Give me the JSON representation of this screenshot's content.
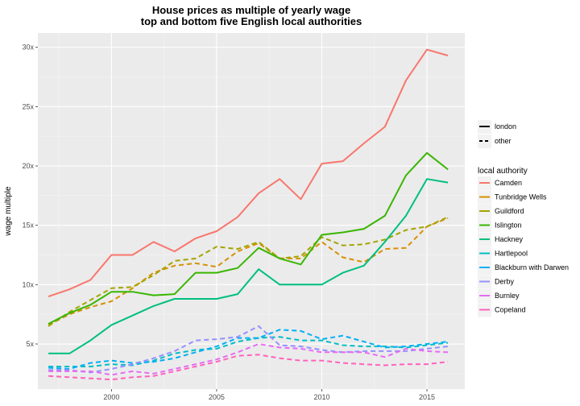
{
  "chart_data": {
    "type": "line",
    "title": "House prices as multiple of yearly wage",
    "subtitle": "top and bottom five English local authorities",
    "xlabel": "",
    "ylabel": "wage multiple",
    "xlim": [
      1996.5,
      2016.8
    ],
    "ylim": [
      1.2,
      31.2
    ],
    "x_ticks": [
      2000,
      2005,
      2010,
      2015
    ],
    "x_tick_labels": [
      "2000",
      "2005",
      "2010",
      "2015"
    ],
    "y_ticks": [
      5,
      10,
      15,
      20,
      25,
      30
    ],
    "y_tick_labels": [
      "5x",
      "10x",
      "15x",
      "20x",
      "25x",
      "30x"
    ],
    "grid": true,
    "legend_position": "right",
    "linetype_legend": {
      "title": "",
      "items": [
        {
          "label": "london",
          "dash": "solid"
        },
        {
          "label": "other",
          "dash": "dashed"
        }
      ]
    },
    "color_legend_title": "local authority",
    "x": [
      1997,
      1998,
      1999,
      2000,
      2001,
      2002,
      2003,
      2004,
      2005,
      2006,
      2007,
      2008,
      2009,
      2010,
      2011,
      2012,
      2013,
      2014,
      2015,
      2016
    ],
    "series": [
      {
        "name": "Camden",
        "color": "#F8766D",
        "dash": "solid",
        "values": [
          9.0,
          9.6,
          10.4,
          12.5,
          12.5,
          13.6,
          12.8,
          13.9,
          14.5,
          15.7,
          17.7,
          18.9,
          17.2,
          20.2,
          20.4,
          21.9,
          23.3,
          27.2,
          29.8,
          29.3
        ]
      },
      {
        "name": "Tunbridge Wells",
        "color": "#D89000",
        "dash": "dashed",
        "values": [
          6.6,
          7.5,
          8.1,
          8.6,
          9.7,
          11.0,
          11.6,
          11.8,
          11.5,
          12.8,
          13.5,
          12.2,
          12.2,
          13.6,
          12.3,
          11.9,
          13.0,
          13.1,
          14.9,
          15.6
        ]
      },
      {
        "name": "Guildford",
        "color": "#A3A500",
        "dash": "dashed",
        "values": [
          6.5,
          7.7,
          8.7,
          9.7,
          9.8,
          10.8,
          12.0,
          12.2,
          13.2,
          13.0,
          13.6,
          12.2,
          12.4,
          14.0,
          13.3,
          13.4,
          13.8,
          14.6,
          14.9,
          15.7
        ]
      },
      {
        "name": "Islington",
        "color": "#39B600",
        "dash": "solid",
        "values": [
          6.7,
          7.6,
          8.3,
          9.4,
          9.4,
          9.1,
          9.2,
          11.0,
          11.0,
          11.4,
          13.1,
          12.2,
          11.7,
          14.2,
          14.4,
          14.7,
          15.8,
          19.2,
          21.1,
          19.7
        ]
      },
      {
        "name": "Hackney",
        "color": "#00BF7D",
        "dash": "solid",
        "values": [
          4.2,
          4.2,
          5.3,
          6.6,
          7.4,
          8.2,
          8.8,
          8.8,
          8.8,
          9.2,
          11.3,
          10.0,
          10.0,
          10.0,
          11.0,
          11.6,
          13.6,
          15.8,
          18.9,
          18.6
        ]
      },
      {
        "name": "Hartlepool",
        "color": "#00BFC4",
        "dash": "dashed",
        "values": [
          3.1,
          3.1,
          3.1,
          3.3,
          3.2,
          3.6,
          4.2,
          4.5,
          4.6,
          5.2,
          5.5,
          5.6,
          5.3,
          5.3,
          4.9,
          4.8,
          4.8,
          4.7,
          4.9,
          5.1
        ]
      },
      {
        "name": "Blackburn with Darwen",
        "color": "#00B0F6",
        "dash": "dashed",
        "values": [
          3.0,
          2.9,
          3.4,
          3.6,
          3.4,
          3.5,
          3.8,
          4.3,
          4.8,
          5.5,
          5.5,
          6.2,
          6.1,
          5.4,
          5.7,
          5.2,
          4.7,
          4.8,
          5.0,
          5.2
        ]
      },
      {
        "name": "Derby",
        "color": "#9590FF",
        "dash": "dashed",
        "values": [
          2.8,
          2.8,
          2.6,
          2.9,
          3.3,
          3.8,
          4.4,
          5.3,
          5.4,
          5.6,
          6.5,
          4.9,
          4.8,
          4.5,
          4.3,
          4.4,
          4.4,
          4.4,
          4.6,
          4.8
        ]
      },
      {
        "name": "Burnley",
        "color": "#E76BF3",
        "dash": "dashed",
        "values": [
          2.7,
          2.7,
          2.7,
          2.4,
          2.7,
          2.5,
          2.9,
          3.3,
          3.7,
          4.3,
          5.0,
          4.7,
          4.6,
          4.3,
          4.3,
          4.3,
          3.9,
          4.6,
          4.4,
          4.3
        ]
      },
      {
        "name": "Copeland",
        "color": "#FF62BC",
        "dash": "dashed",
        "values": [
          2.3,
          2.2,
          2.1,
          2.0,
          2.2,
          2.3,
          2.7,
          3.1,
          3.5,
          4.0,
          4.1,
          3.8,
          3.6,
          3.6,
          3.4,
          3.3,
          3.2,
          3.3,
          3.3,
          3.5
        ]
      }
    ]
  }
}
